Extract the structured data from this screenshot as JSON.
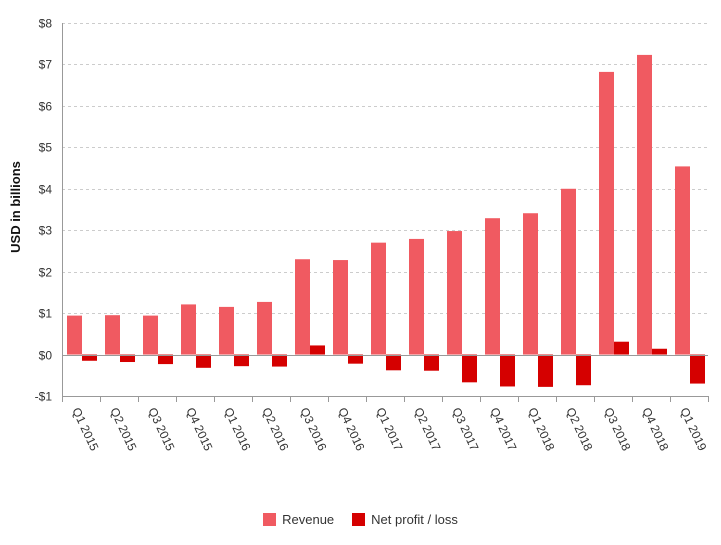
{
  "colors": {
    "revenue": "#f05a61",
    "profit": "#d50000",
    "grid": "#cccccc",
    "axis": "#999999"
  },
  "chart_data": {
    "type": "bar",
    "ylabel": "USD in billions",
    "ylim": [
      -1,
      8
    ],
    "yticks": [
      -1,
      0,
      1,
      2,
      3,
      4,
      5,
      6,
      7,
      8
    ],
    "ytick_labels": [
      "-$1",
      "$0",
      "$1",
      "$2",
      "$3",
      "$4",
      "$5",
      "$6",
      "$7",
      "$8"
    ],
    "grid": true,
    "legend_position": "bottom",
    "categories": [
      "Q1 2015",
      "Q2 2015",
      "Q3 2015",
      "Q4 2015",
      "Q1 2016",
      "Q2 2016",
      "Q3 2016",
      "Q4 2016",
      "Q1 2017",
      "Q2 2017",
      "Q3 2017",
      "Q4 2017",
      "Q1 2018",
      "Q2 2018",
      "Q3 2018",
      "Q4 2018",
      "Q1 2019"
    ],
    "series": [
      {
        "name": "Revenue",
        "color_key": "revenue",
        "values": [
          0.94,
          0.95,
          0.94,
          1.21,
          1.15,
          1.27,
          2.3,
          2.28,
          2.7,
          2.79,
          2.98,
          3.29,
          3.41,
          4.0,
          6.82,
          7.23,
          4.54
        ]
      },
      {
        "name": "Net profit / loss",
        "color_key": "profit",
        "values": [
          -0.15,
          -0.18,
          -0.23,
          -0.32,
          -0.28,
          -0.29,
          0.22,
          -0.22,
          -0.38,
          -0.39,
          -0.67,
          -0.77,
          -0.78,
          -0.74,
          0.31,
          0.14,
          -0.7
        ]
      }
    ]
  }
}
